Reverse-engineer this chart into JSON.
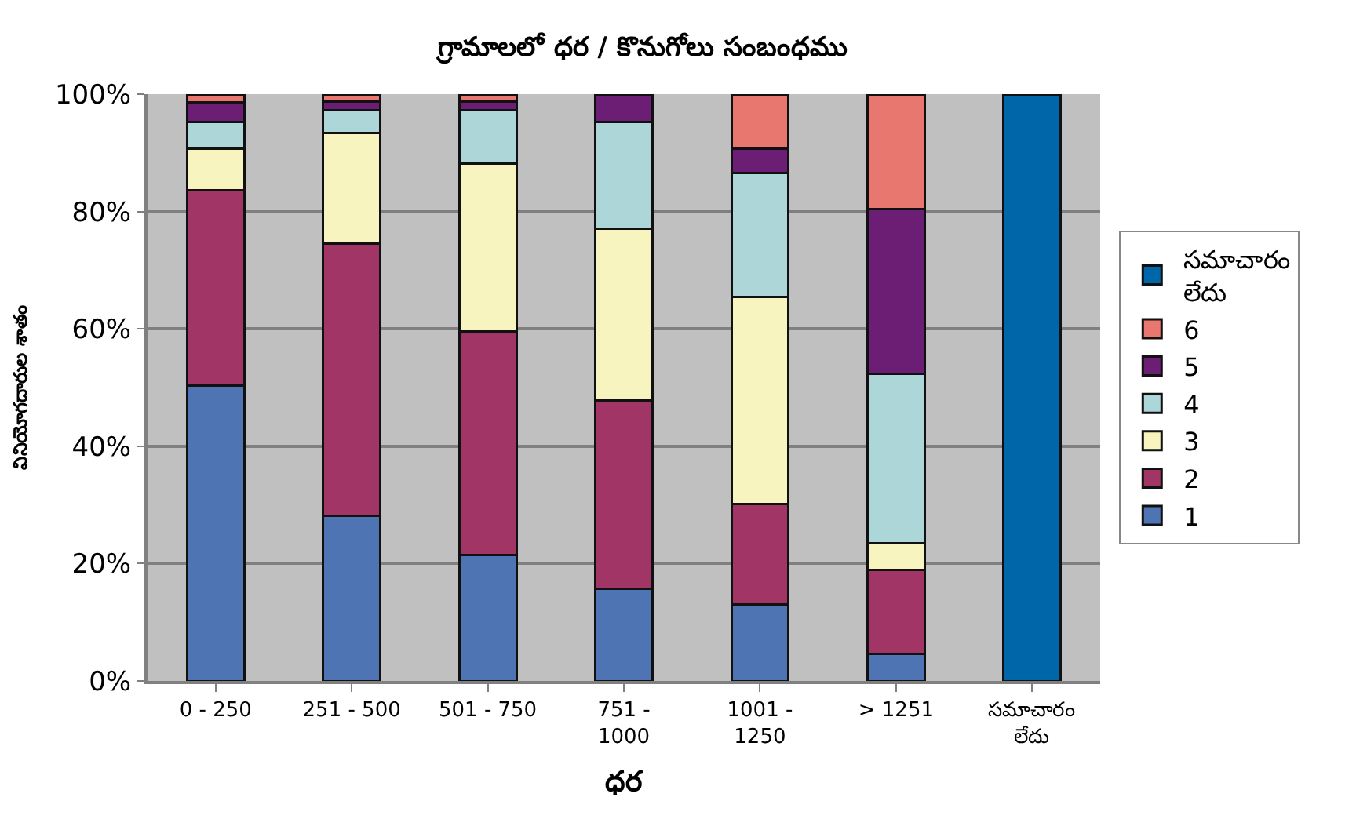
{
  "chart_data": {
    "type": "bar",
    "stacked": true,
    "title": "గ్రామాలలో ధర / కొనుగోలు సంబంధము",
    "xlabel": "ధర",
    "ylabel": "వినియోగదారుల శాతం",
    "categories": [
      "0 - 250",
      "251 - 500",
      "501 - 750",
      "751 -\n1000",
      "1001 -\n1250",
      "> 1251",
      "సమాచారం\nలేదు"
    ],
    "series": [
      {
        "name": "1",
        "color": "#4f74b3",
        "values": [
          50.3,
          28.2,
          21.5,
          15.7,
          13.1,
          4.6,
          null
        ]
      },
      {
        "name": "2",
        "color": "#a03566",
        "values": [
          33.3,
          46.3,
          38.1,
          32.1,
          17.0,
          14.3,
          null
        ]
      },
      {
        "name": "3",
        "color": "#f8f4c0",
        "values": [
          7.1,
          18.9,
          28.6,
          29.3,
          35.3,
          4.5,
          null
        ]
      },
      {
        "name": "4",
        "color": "#acd6d8",
        "values": [
          4.6,
          3.8,
          9.0,
          18.2,
          21.2,
          28.9,
          null
        ]
      },
      {
        "name": "5",
        "color": "#6b1e74",
        "values": [
          3.3,
          1.5,
          1.5,
          4.7,
          4.1,
          28.1,
          null
        ]
      },
      {
        "name": "6",
        "color": "#e8776f",
        "values": [
          1.4,
          1.3,
          1.3,
          null,
          9.3,
          19.6,
          null
        ]
      },
      {
        "name": "సమాచారం\nలేదు",
        "color": "#0066aa",
        "values": [
          null,
          null,
          null,
          null,
          null,
          null,
          100
        ]
      }
    ],
    "ylim": [
      0,
      100
    ],
    "yticks": [
      {
        "value": 0,
        "label": "0%"
      },
      {
        "value": 20,
        "label": "20%"
      },
      {
        "value": 40,
        "label": "40%"
      },
      {
        "value": 60,
        "label": "60%"
      },
      {
        "value": 80,
        "label": "80%"
      },
      {
        "value": 100,
        "label": "100%"
      }
    ],
    "grid": "y",
    "legend": "right"
  }
}
